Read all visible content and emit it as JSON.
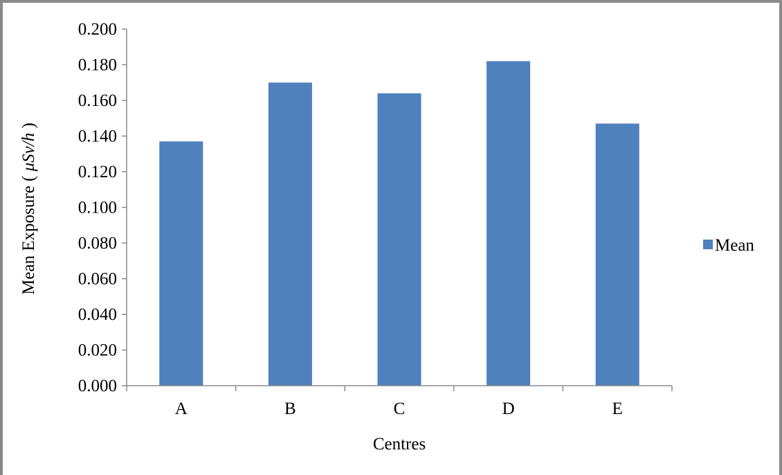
{
  "chart_data": {
    "type": "bar",
    "categories": [
      "A",
      "B",
      "C",
      "D",
      "E"
    ],
    "series": [
      {
        "name": "Mean",
        "values": [
          0.137,
          0.17,
          0.164,
          0.182,
          0.147
        ],
        "color": "#4f81bd"
      }
    ],
    "title": "",
    "xlabel": "Centres",
    "ylabel_prefix": "Mean Exposure",
    "ylabel_unit": "μSv/h",
    "ylim": [
      0,
      0.2
    ],
    "yticks": [
      "0.000",
      "0.020",
      "0.040",
      "0.060",
      "0.080",
      "0.100",
      "0.120",
      "0.140",
      "0.160",
      "0.180",
      "0.200"
    ],
    "grid": false,
    "legend_position": "right"
  },
  "colors": {
    "bar": "#4f81bd",
    "axis": "#8c8c8c",
    "frame": "#8a8a8a"
  }
}
